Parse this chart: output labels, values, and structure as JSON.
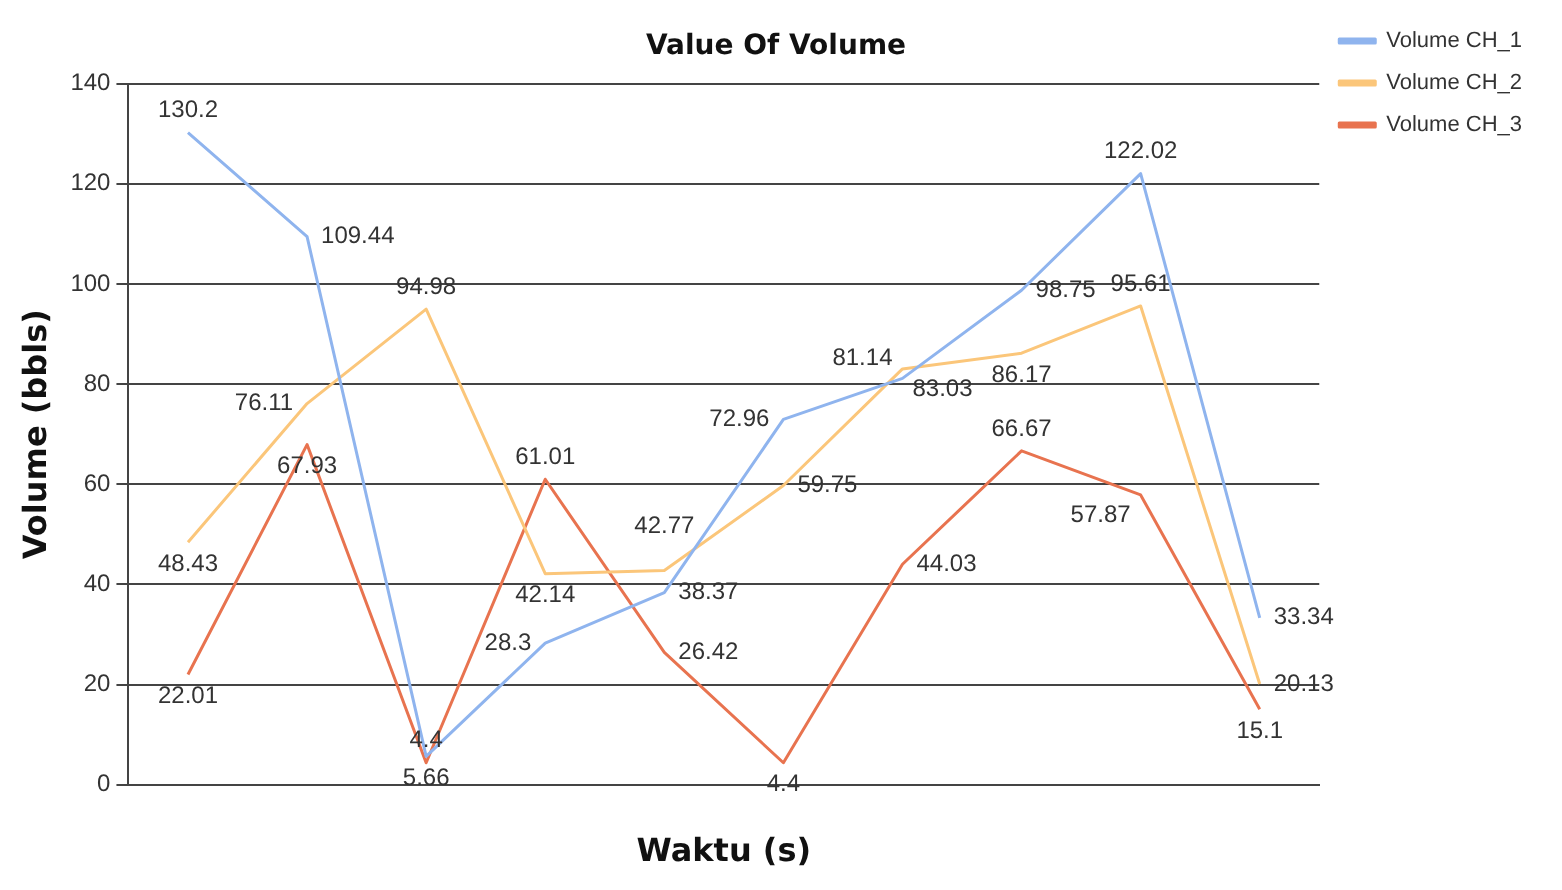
{
  "chart_data": {
    "type": "line",
    "title": "Value Of Volume",
    "xlabel": "Waktu (s)",
    "ylabel": "Volume (bbls)",
    "categories": [
      null,
      null,
      null,
      null,
      null,
      null,
      null,
      null,
      null,
      null
    ],
    "series": [
      {
        "name": "Volume CH_1",
        "color": "#8fb4ee",
        "values": [
          130.2,
          109.44,
          5.66,
          28.3,
          38.37,
          72.96,
          81.14,
          98.75,
          122.02,
          33.34
        ]
      },
      {
        "name": "Volume CH_2",
        "color": "#fbc67a",
        "values": [
          48.43,
          76.11,
          94.98,
          42.14,
          42.77,
          59.75,
          83.03,
          86.17,
          95.61,
          20.13
        ]
      },
      {
        "name": "Volume CH_3",
        "color": "#e8734f",
        "values": [
          22.01,
          67.93,
          4.4,
          61.01,
          26.42,
          4.4,
          44.03,
          66.67,
          57.87,
          15.1
        ]
      }
    ],
    "ylim": [
      0,
      140
    ],
    "yticks": [
      0,
      20,
      40,
      60,
      80,
      100,
      120,
      140
    ],
    "grid": "y",
    "legend": "top right",
    "marker": "none",
    "data_labels": true
  }
}
